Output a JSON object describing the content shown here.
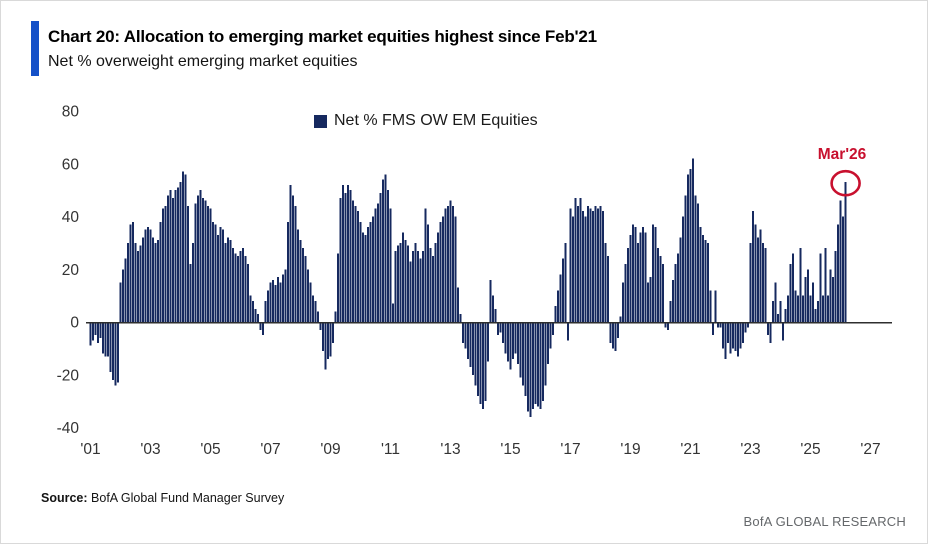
{
  "header": {
    "title": "Chart 20: Allocation to emerging market equities highest since Feb'21",
    "subtitle": "Net % overweight emerging market equities"
  },
  "legend": {
    "label": "Net % FMS OW EM Equities"
  },
  "annotation": {
    "label": "Mar'26"
  },
  "footer": {
    "source_label": "Source:",
    "source_text": "BofA Global Fund Manager Survey",
    "brand": "BofA GLOBAL RESEARCH"
  },
  "colors": {
    "bar": "#16295f",
    "accent": "#1450c8",
    "annotation": "#c8102e",
    "axis": "#2e2e2e",
    "tick_text": "#333333"
  },
  "chart_data": {
    "type": "bar",
    "title": "Net % FMS OW EM Equities",
    "ylabel": "Net % overweight EM equities",
    "frequency": "monthly",
    "x_start": "2001-01",
    "x_end": "2026-03",
    "x_tick_labels": [
      "'01",
      "'03",
      "'05",
      "'07",
      "'09",
      "'11",
      "'13",
      "'15",
      "'17",
      "'19",
      "'21",
      "'23",
      "'25",
      "'27"
    ],
    "y_ticks": [
      80,
      60,
      40,
      20,
      0,
      -20,
      -40
    ],
    "ylim": [
      -40,
      80
    ],
    "grid": false,
    "legend_position": "top-center",
    "annotated_point": {
      "label": "Mar'26",
      "value": 53
    },
    "values_by_year": {
      "2001": [
        -9,
        -7,
        -5,
        -8,
        -6,
        -12,
        -13,
        -13,
        -19,
        -22,
        -24,
        -23
      ],
      "2002": [
        15,
        20,
        24,
        30,
        37,
        38,
        30,
        27,
        29,
        32,
        35,
        36
      ],
      "2003": [
        35,
        32,
        30,
        31,
        38,
        43,
        44,
        48,
        50,
        47,
        50,
        51
      ],
      "2004": [
        53,
        57,
        56,
        44,
        22,
        30,
        45,
        48,
        50,
        47,
        46,
        44
      ],
      "2005": [
        43,
        38,
        37,
        33,
        36,
        35,
        30,
        32,
        31,
        28,
        26,
        25
      ],
      "2006": [
        27,
        28,
        25,
        22,
        10,
        8,
        5,
        3,
        -3,
        -5,
        8,
        12
      ],
      "2007": [
        15,
        16,
        14,
        17,
        15,
        18,
        20,
        38,
        52,
        48,
        44,
        35
      ],
      "2008": [
        31,
        28,
        25,
        20,
        15,
        10,
        8,
        4,
        -3,
        -11,
        -18,
        -14
      ],
      "2009": [
        -13,
        -8,
        4,
        26,
        47,
        52,
        49,
        52,
        50,
        46,
        44,
        42
      ],
      "2010": [
        38,
        34,
        33,
        36,
        38,
        40,
        43,
        45,
        49,
        54,
        56,
        50
      ],
      "2011": [
        43,
        7,
        27,
        29,
        30,
        34,
        31,
        29,
        23,
        27,
        30,
        27
      ],
      "2012": [
        24,
        27,
        43,
        37,
        28,
        25,
        30,
        34,
        38,
        40,
        43,
        44
      ],
      "2013": [
        46,
        44,
        40,
        13,
        3,
        -8,
        -10,
        -14,
        -17,
        -20,
        -24,
        -28
      ],
      "2014": [
        -31,
        -33,
        -30,
        -15,
        16,
        10,
        5,
        -5,
        -4,
        -8,
        -12,
        -15
      ],
      "2015": [
        -18,
        -14,
        -12,
        -16,
        -21,
        -24,
        -28,
        -34,
        -36,
        -33,
        -31,
        -32
      ],
      "2016": [
        -33,
        -30,
        -24,
        -16,
        -10,
        -5,
        6,
        12,
        18,
        24,
        30,
        -7
      ],
      "2017": [
        43,
        40,
        47,
        44,
        47,
        42,
        40,
        44,
        43,
        42,
        44,
        43
      ],
      "2018": [
        44,
        42,
        30,
        25,
        -8,
        -10,
        -11,
        -6,
        2,
        15,
        22,
        28
      ],
      "2019": [
        33,
        37,
        36,
        30,
        34,
        36,
        34,
        15,
        17,
        37,
        36,
        28
      ],
      "2020": [
        25,
        22,
        -2,
        -3,
        8,
        16,
        22,
        26,
        32,
        40,
        48,
        56
      ],
      "2021": [
        58,
        62,
        48,
        45,
        36,
        33,
        31,
        30,
        12,
        -5,
        12,
        -2
      ],
      "2022": [
        -2,
        -10,
        -14,
        -8,
        -12,
        -10,
        -11,
        -13,
        -10,
        -8,
        -4,
        -2
      ],
      "2023": [
        30,
        42,
        37,
        32,
        35,
        30,
        28,
        -5,
        -8,
        8,
        15,
        3
      ],
      "2024": [
        8,
        -7,
        5,
        10,
        22,
        26,
        12,
        10,
        28,
        10,
        17,
        20
      ],
      "2025": [
        10,
        15,
        5,
        8,
        26,
        10,
        28,
        10,
        20,
        17,
        27,
        37
      ],
      "2026": [
        46,
        40,
        53
      ]
    }
  }
}
